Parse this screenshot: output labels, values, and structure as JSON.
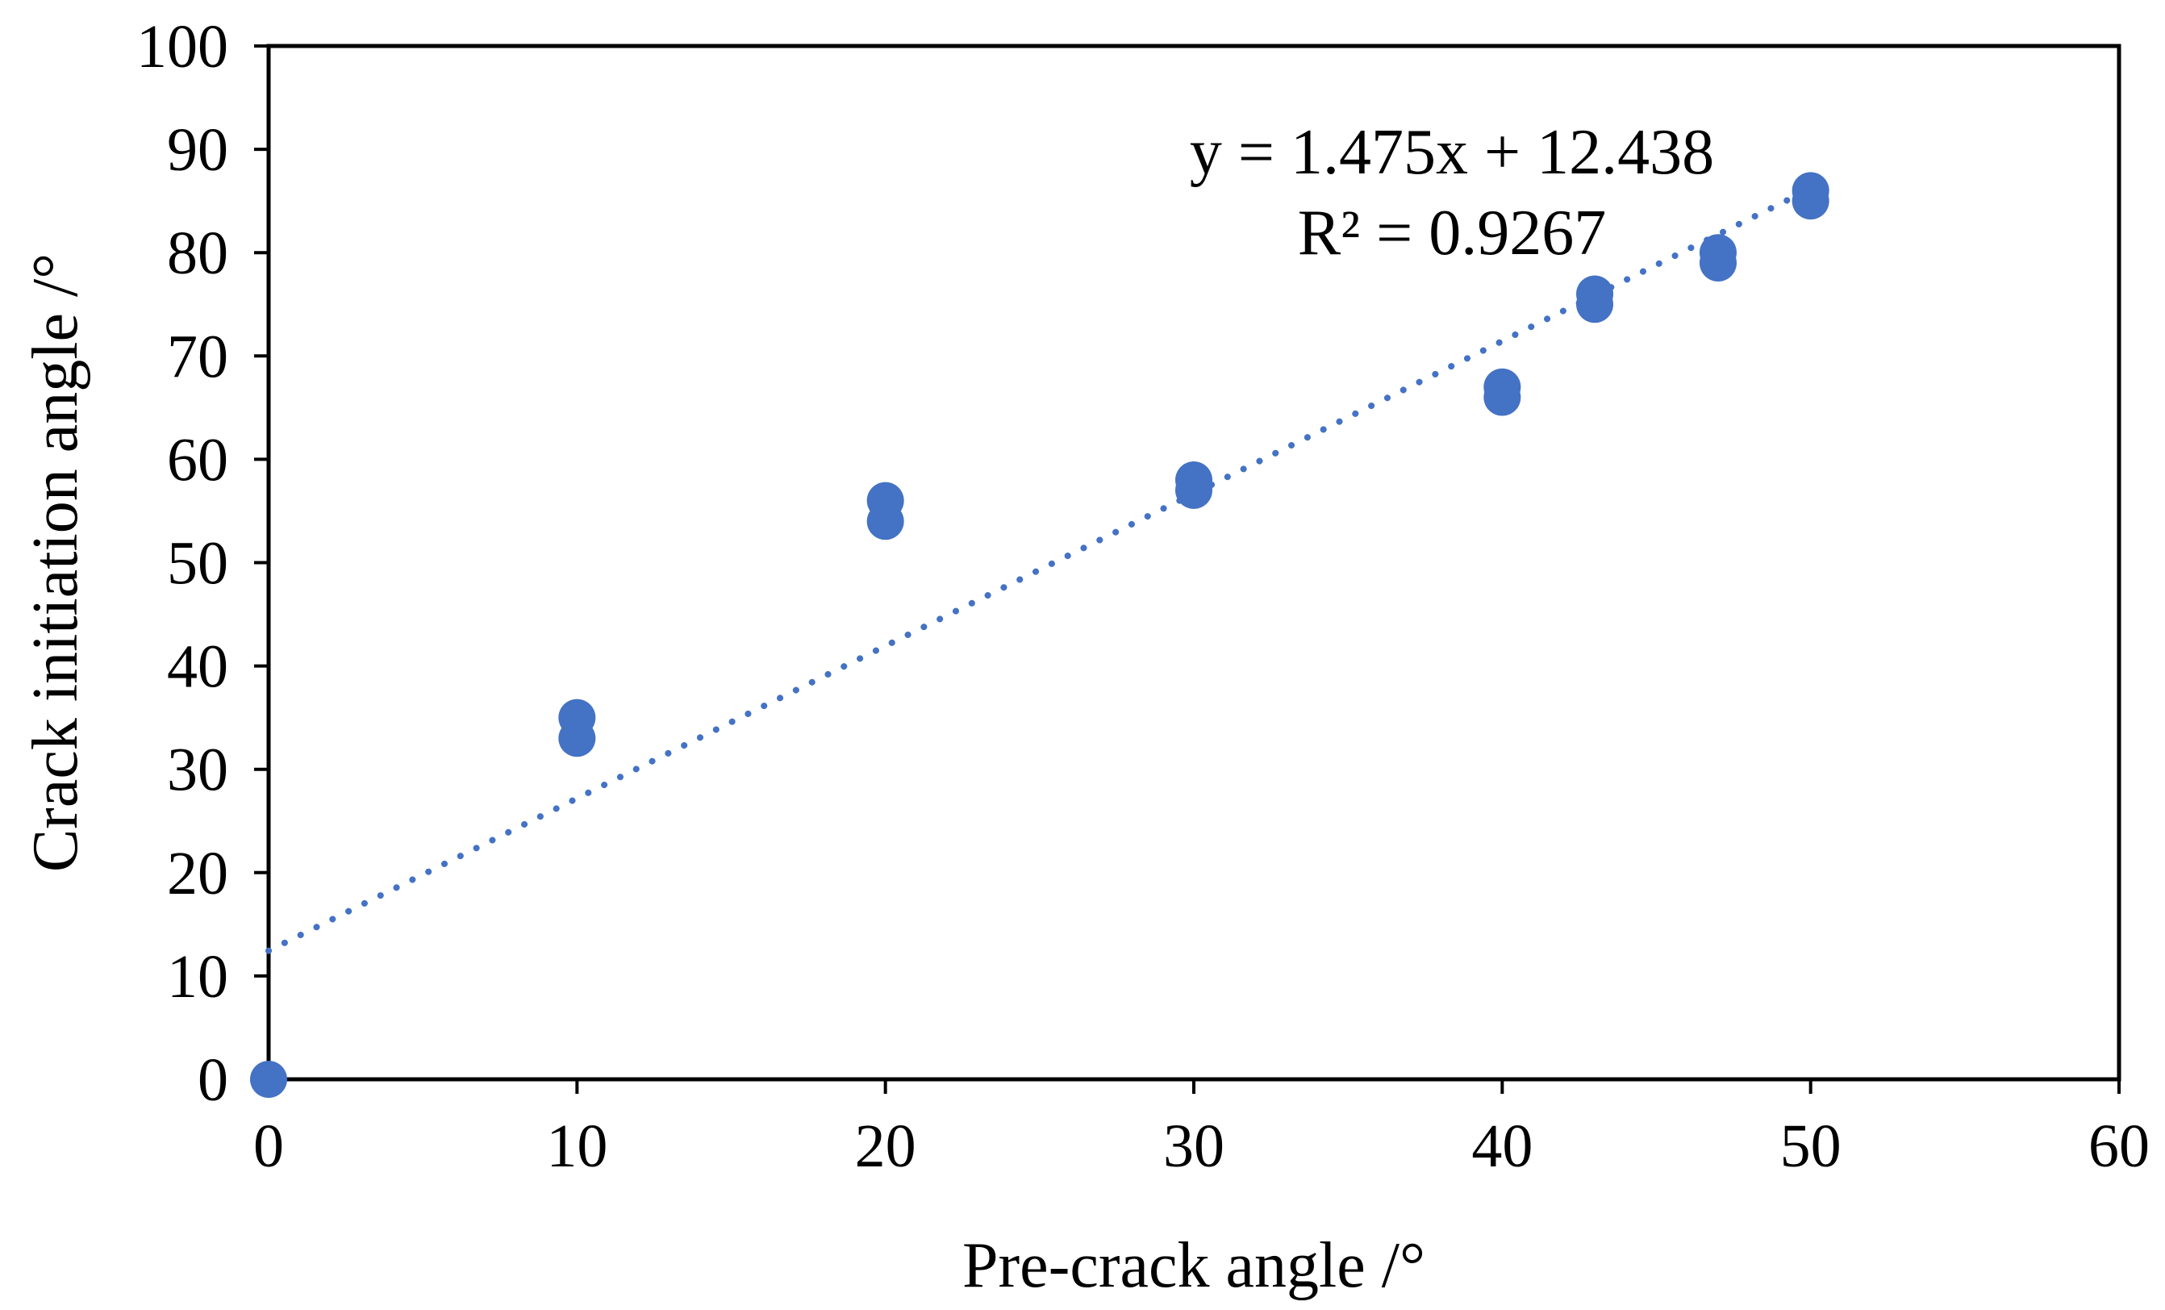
{
  "chart_data": {
    "type": "scatter",
    "title": "",
    "xlabel": "Pre-crack angle /°",
    "ylabel": "Crack initiation angle /°",
    "xlim": [
      0,
      60
    ],
    "ylim": [
      0,
      100
    ],
    "xticks": [
      "0",
      "10",
      "20",
      "30",
      "40",
      "50",
      "60"
    ],
    "yticks": [
      "0",
      "10",
      "20",
      "30",
      "40",
      "50",
      "60",
      "70",
      "80",
      "90",
      "100"
    ],
    "grid": false,
    "colors": {
      "marker": "#4472C4",
      "trendline": "#4472C4",
      "axis": "#000000"
    },
    "series": [
      {
        "name": "Crack initiation angle",
        "points": [
          {
            "x": 0,
            "y": 0
          },
          {
            "x": 10,
            "y": 33
          },
          {
            "x": 10,
            "y": 35
          },
          {
            "x": 20,
            "y": 54
          },
          {
            "x": 20,
            "y": 56
          },
          {
            "x": 30,
            "y": 57
          },
          {
            "x": 30,
            "y": 58
          },
          {
            "x": 40,
            "y": 66
          },
          {
            "x": 40,
            "y": 67
          },
          {
            "x": 43,
            "y": 75
          },
          {
            "x": 43,
            "y": 76
          },
          {
            "x": 47,
            "y": 79
          },
          {
            "x": 47,
            "y": 80
          },
          {
            "x": 50,
            "y": 85
          },
          {
            "x": 50,
            "y": 86
          }
        ]
      }
    ],
    "trendline": {
      "type": "linear",
      "slope": 1.475,
      "intercept": 12.438,
      "x_range": [
        0,
        50
      ],
      "style": "dotted",
      "equation_label": "y = 1.475x + 12.438",
      "r2_label": "R² = 0.9267"
    }
  }
}
